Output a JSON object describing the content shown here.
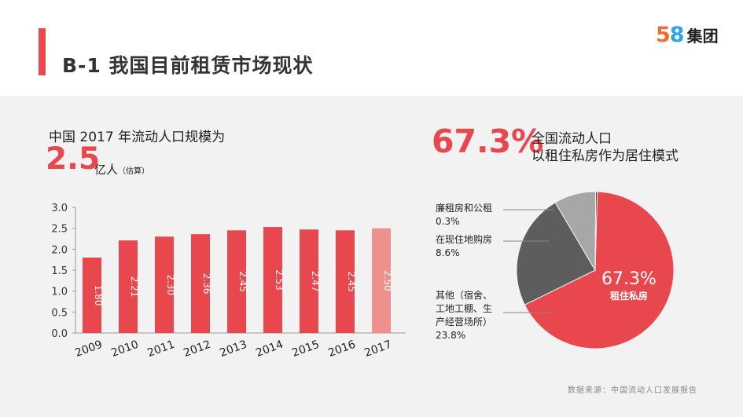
{
  "header": {
    "title": "B-1  我国目前租赁市场现状",
    "logo_5": "5",
    "logo_8": "8",
    "logo_name": "集团"
  },
  "left": {
    "headline": "中国 2017 年流动人口规模为",
    "big_value": "2.5",
    "unit": "亿人",
    "unit_note": "（估算）"
  },
  "right": {
    "big_value": "67.3%",
    "line1": "全国流动人口",
    "line2": "以租住私房作为居住模式"
  },
  "source": "数据来源：中国流动人口发展报告",
  "colors": {
    "accent": "#e8474e",
    "bar": "#e8474e",
    "bar_estimate": "#f0908c",
    "slice_rent": "#e8474e",
    "slice_other": "#5d5d5d",
    "slice_buy": "#a7a7a7",
    "slice_public": "#1a1a1a"
  },
  "chart_data": [
    {
      "type": "bar",
      "categories": [
        "2009",
        "2010",
        "2011",
        "2012",
        "2013",
        "2014",
        "2015",
        "2016",
        "2017"
      ],
      "values": [
        1.8,
        2.21,
        2.3,
        2.36,
        2.45,
        2.53,
        2.47,
        2.45,
        2.5
      ],
      "value_labels": [
        "1.80",
        "2.21",
        "2.30",
        "2.36",
        "2.45",
        "2.53",
        "2.47",
        "2.45",
        "2.50"
      ],
      "yticks": [
        "0.0",
        "0.5",
        "1.0",
        "1.5",
        "2.0",
        "2.5",
        "3.0"
      ],
      "ylim": [
        0,
        3.0
      ],
      "estimated_category": "2017",
      "grid": false
    },
    {
      "type": "pie",
      "slices": [
        {
          "label": "租住私房",
          "value": 67.3,
          "value_label": "67.3%"
        },
        {
          "label": "其他（宿舍、工地工棚、生产经营场所）",
          "value": 23.8,
          "value_label": "23.8%"
        },
        {
          "label": "在现住地购房",
          "value": 8.6,
          "value_label": "8.6%"
        },
        {
          "label": "廉租房和公租",
          "value": 0.3,
          "value_label": "0.3%"
        }
      ]
    }
  ],
  "pie_labels": {
    "public_name": "廉租房和公租",
    "public_value": "0.3%",
    "buy_name": "在现住地购房",
    "buy_value": "8.6%",
    "other_line1": "其他（宿舍、",
    "other_line2": "工地工棚、生",
    "other_line3": "产经营场所）",
    "other_value": "23.8%",
    "rent_value": "67.3%",
    "rent_name": "租住私房"
  }
}
